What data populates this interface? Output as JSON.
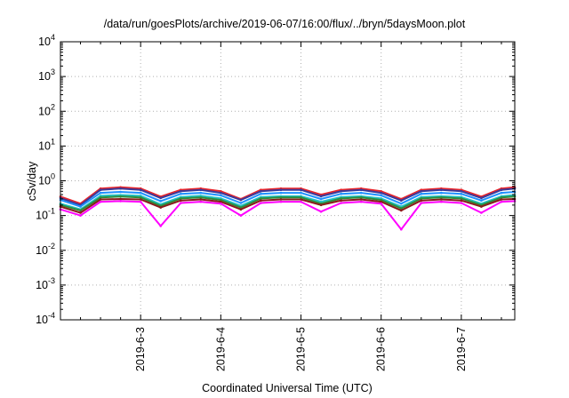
{
  "chart_data": {
    "type": "line",
    "title": "/data/run/goesPlots/archive/2019-06-07/16:00/flux/../bryn/5daysMoon.plot",
    "xlabel": "Coordinated Universal Time (UTC)",
    "ylabel": "cSv/day",
    "yscale": "log",
    "ylim": [
      0.0001,
      10000
    ],
    "yticks": [
      {
        "value": 0.0001,
        "base": "10",
        "exp": "-4"
      },
      {
        "value": 0.001,
        "base": "10",
        "exp": "-3"
      },
      {
        "value": 0.01,
        "base": "10",
        "exp": "-2"
      },
      {
        "value": 0.1,
        "base": "10",
        "exp": "-1"
      },
      {
        "value": 1,
        "base": "10",
        "exp": "0"
      },
      {
        "value": 10,
        "base": "10",
        "exp": "1"
      },
      {
        "value": 100,
        "base": "10",
        "exp": "2"
      },
      {
        "value": 1000,
        "base": "10",
        "exp": "3"
      },
      {
        "value": 10000,
        "base": "10",
        "exp": "4"
      }
    ],
    "xlim": [
      "2019-06-02 00:00",
      "2019-06-07 16:00"
    ],
    "xticks": [
      "2019-6-3",
      "2019-6-4",
      "2019-6-5",
      "2019-6-6",
      "2019-6-7"
    ],
    "grid": true,
    "x": [
      "2019-06-02 00:00",
      "2019-06-02 06:00",
      "2019-06-02 12:00",
      "2019-06-02 18:00",
      "2019-06-03 00:00",
      "2019-06-03 06:00",
      "2019-06-03 12:00",
      "2019-06-03 18:00",
      "2019-06-04 00:00",
      "2019-06-04 06:00",
      "2019-06-04 12:00",
      "2019-06-04 18:00",
      "2019-06-05 00:00",
      "2019-06-05 06:00",
      "2019-06-05 12:00",
      "2019-06-05 18:00",
      "2019-06-06 00:00",
      "2019-06-06 06:00",
      "2019-06-06 12:00",
      "2019-06-06 18:00",
      "2019-06-07 00:00",
      "2019-06-07 06:00",
      "2019-06-07 12:00",
      "2019-06-07 16:00"
    ],
    "series": [
      {
        "color": "#e8242a",
        "values": [
          0.35,
          0.22,
          0.6,
          0.65,
          0.6,
          0.35,
          0.55,
          0.6,
          0.5,
          0.3,
          0.55,
          0.6,
          0.6,
          0.4,
          0.55,
          0.6,
          0.5,
          0.3,
          0.55,
          0.6,
          0.55,
          0.35,
          0.6,
          0.65
        ]
      },
      {
        "color": "#3a3a9a",
        "values": [
          0.32,
          0.2,
          0.55,
          0.6,
          0.55,
          0.32,
          0.5,
          0.55,
          0.45,
          0.28,
          0.5,
          0.55,
          0.55,
          0.36,
          0.5,
          0.55,
          0.45,
          0.27,
          0.5,
          0.55,
          0.5,
          0.32,
          0.55,
          0.6
        ]
      },
      {
        "color": "#1e90ff",
        "values": [
          0.28,
          0.18,
          0.45,
          0.48,
          0.45,
          0.26,
          0.42,
          0.45,
          0.38,
          0.23,
          0.42,
          0.45,
          0.45,
          0.3,
          0.42,
          0.45,
          0.38,
          0.22,
          0.42,
          0.45,
          0.42,
          0.27,
          0.45,
          0.48
        ]
      },
      {
        "color": "#20c0c0",
        "values": [
          0.22,
          0.15,
          0.37,
          0.39,
          0.37,
          0.21,
          0.34,
          0.37,
          0.31,
          0.19,
          0.34,
          0.36,
          0.36,
          0.25,
          0.34,
          0.36,
          0.31,
          0.18,
          0.34,
          0.36,
          0.34,
          0.22,
          0.36,
          0.39
        ]
      },
      {
        "color": "#2e8b3a",
        "values": [
          0.2,
          0.14,
          0.33,
          0.35,
          0.33,
          0.19,
          0.31,
          0.33,
          0.28,
          0.17,
          0.31,
          0.33,
          0.33,
          0.22,
          0.31,
          0.33,
          0.28,
          0.16,
          0.31,
          0.33,
          0.31,
          0.2,
          0.33,
          0.35
        ]
      },
      {
        "color": "#8b1a1a",
        "values": [
          0.18,
          0.12,
          0.29,
          0.3,
          0.29,
          0.17,
          0.27,
          0.29,
          0.25,
          0.15,
          0.27,
          0.29,
          0.29,
          0.2,
          0.27,
          0.29,
          0.25,
          0.14,
          0.27,
          0.29,
          0.27,
          0.18,
          0.29,
          0.3
        ]
      },
      {
        "color": "#ff00ff",
        "values": [
          0.15,
          0.1,
          0.25,
          0.26,
          0.25,
          0.05,
          0.23,
          0.25,
          0.22,
          0.1,
          0.23,
          0.25,
          0.25,
          0.13,
          0.23,
          0.25,
          0.22,
          0.04,
          0.23,
          0.25,
          0.23,
          0.12,
          0.25,
          0.26
        ]
      }
    ]
  }
}
